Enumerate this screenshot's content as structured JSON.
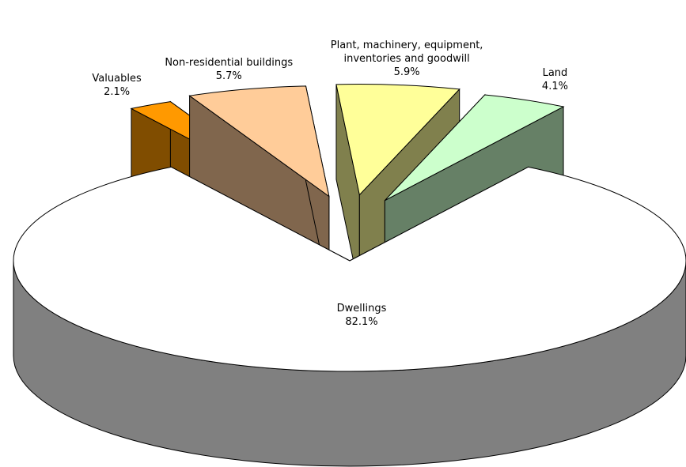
{
  "chart_data": {
    "type": "pie",
    "categories": [
      "Valuables",
      "Non-residential buildings",
      "Plant, machinery, equipment, inventories and goodwill",
      "Land",
      "Dwellings"
    ],
    "values": [
      2.1,
      5.7,
      5.9,
      4.1,
      82.1
    ],
    "value_labels": [
      "2.1%",
      "5.7%",
      "5.9%",
      "4.1%",
      "82.1%"
    ],
    "colors": [
      "#ff9900",
      "#ffcc99",
      "#ffff99",
      "#ccffcc",
      "#ffffff"
    ]
  }
}
